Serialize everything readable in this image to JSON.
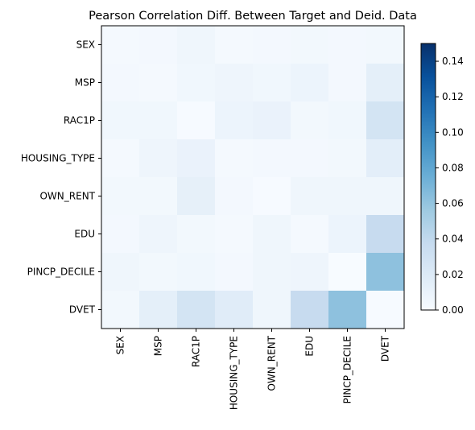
{
  "chart_data": {
    "type": "heatmap",
    "title": "Pearson Correlation Diff. Between Target and Deid. Data",
    "rows": [
      "SEX",
      "MSP",
      "RAC1P",
      "HOUSING_TYPE",
      "OWN_RENT",
      "EDU",
      "PINCP_DECILE",
      "DVET"
    ],
    "columns": [
      "SEX",
      "MSP",
      "RAC1P",
      "HOUSING_TYPE",
      "OWN_RENT",
      "EDU",
      "PINCP_DECILE",
      "DVET"
    ],
    "values": [
      [
        0.002,
        0.003,
        0.006,
        0.002,
        0.003,
        0.004,
        0.003,
        0.004
      ],
      [
        0.003,
        0.002,
        0.005,
        0.007,
        0.005,
        0.008,
        0.003,
        0.014
      ],
      [
        0.005,
        0.005,
        0.001,
        0.008,
        0.01,
        0.004,
        0.005,
        0.027
      ],
      [
        0.002,
        0.007,
        0.01,
        0.002,
        0.003,
        0.003,
        0.004,
        0.015
      ],
      [
        0.004,
        0.004,
        0.013,
        0.003,
        0.001,
        0.006,
        0.006,
        0.006
      ],
      [
        0.003,
        0.007,
        0.004,
        0.002,
        0.006,
        0.002,
        0.008,
        0.037
      ],
      [
        0.006,
        0.004,
        0.005,
        0.003,
        0.006,
        0.007,
        0.0,
        0.062
      ],
      [
        0.004,
        0.014,
        0.027,
        0.017,
        0.006,
        0.037,
        0.062,
        0.001
      ]
    ],
    "vmin": 0.0,
    "vmax": 0.15,
    "colormap": "Blues",
    "colorbar_ticks": [
      0.0,
      0.02,
      0.04,
      0.06,
      0.08,
      0.1,
      0.12,
      0.14
    ],
    "colorbar_tick_labels": [
      "0.00",
      "0.02",
      "0.04",
      "0.06",
      "0.08",
      "0.10",
      "0.12",
      "0.14"
    ],
    "grid": false,
    "legend": "colorbar-right"
  }
}
